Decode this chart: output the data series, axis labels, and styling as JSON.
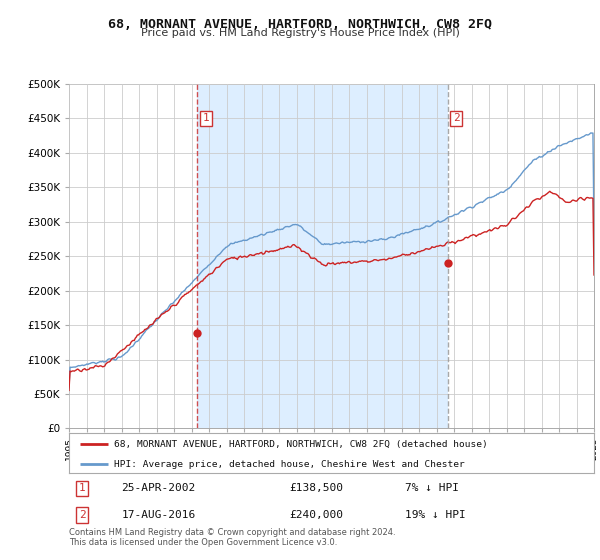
{
  "title": "68, MORNANT AVENUE, HARTFORD, NORTHWICH, CW8 2FQ",
  "subtitle": "Price paid vs. HM Land Registry's House Price Index (HPI)",
  "ylabel_ticks": [
    "£0",
    "£50K",
    "£100K",
    "£150K",
    "£200K",
    "£250K",
    "£300K",
    "£350K",
    "£400K",
    "£450K",
    "£500K"
  ],
  "ytick_values": [
    0,
    50000,
    100000,
    150000,
    200000,
    250000,
    300000,
    350000,
    400000,
    450000,
    500000
  ],
  "ylim": [
    0,
    500000
  ],
  "hpi_color": "#6699cc",
  "price_color": "#cc2222",
  "shade_color": "#ddeeff",
  "dashed_line1_color": "#cc3333",
  "dashed_line2_color": "#999999",
  "background_color": "#ffffff",
  "grid_color": "#cccccc",
  "sale1_x": 2002.32,
  "sale1_y": 138500,
  "sale1_label": "1",
  "sale1_date": "25-APR-2002",
  "sale1_price": "£138,500",
  "sale1_hpi": "7% ↓ HPI",
  "sale2_x": 2016.63,
  "sale2_y": 240000,
  "sale2_label": "2",
  "sale2_date": "17-AUG-2016",
  "sale2_price": "£240,000",
  "sale2_hpi": "19% ↓ HPI",
  "legend_line1": "68, MORNANT AVENUE, HARTFORD, NORTHWICH, CW8 2FQ (detached house)",
  "legend_line2": "HPI: Average price, detached house, Cheshire West and Chester",
  "footnote": "Contains HM Land Registry data © Crown copyright and database right 2024.\nThis data is licensed under the Open Government Licence v3.0.",
  "xmin": 1995,
  "xmax": 2025
}
